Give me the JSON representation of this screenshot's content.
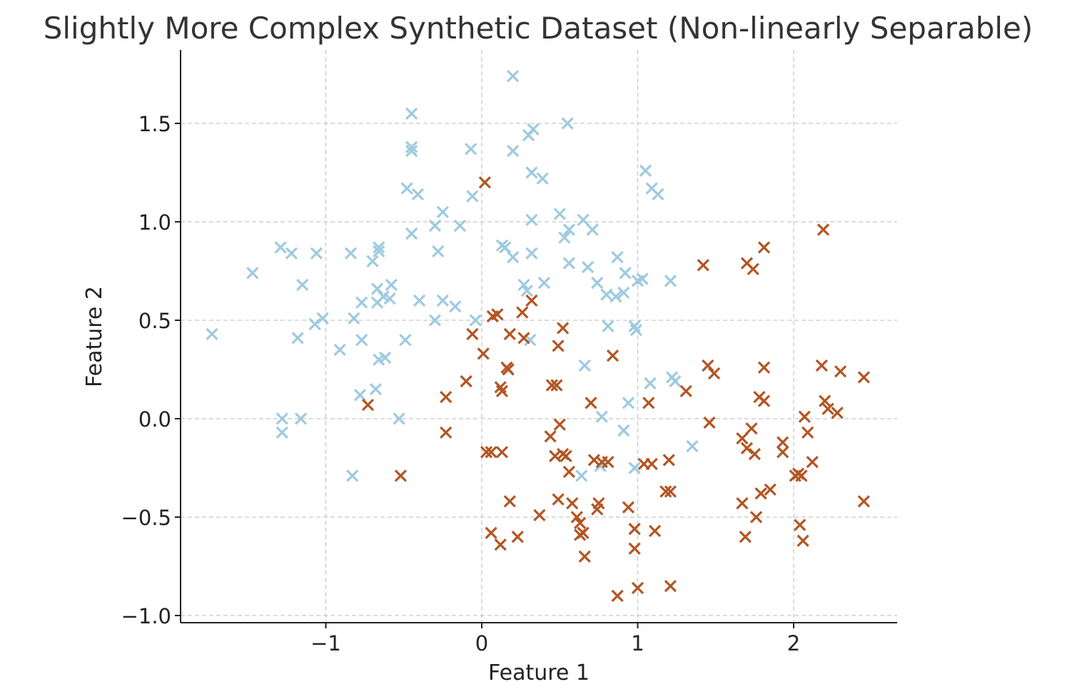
{
  "chart_data": {
    "type": "scatter",
    "title": "Slightly More Complex Synthetic Dataset (Non-linearly Separable)",
    "xlabel": "Feature 1",
    "ylabel": "Feature 2",
    "xlim": [
      -1.9,
      2.65
    ],
    "ylim": [
      -1.04,
      1.87
    ],
    "xticks": [
      -1,
      0,
      1,
      2
    ],
    "yticks": [
      -1.0,
      -0.5,
      0.0,
      0.5,
      1.0,
      1.5
    ],
    "xtick_labels": [
      "−1",
      "0",
      "1",
      "2"
    ],
    "ytick_labels": [
      "−1.0",
      "−0.5",
      "0.0",
      "0.5",
      "1.0",
      "1.5"
    ],
    "grid": true,
    "marker": "x",
    "series": [
      {
        "color": "#9ecae1",
        "points": [
          [
            0.2,
            1.74
          ],
          [
            -0.45,
            1.55
          ],
          [
            0.55,
            1.5
          ],
          [
            0.3,
            1.44
          ],
          [
            0.33,
            1.47
          ],
          [
            -0.45,
            1.38
          ],
          [
            -0.45,
            1.36
          ],
          [
            -0.07,
            1.37
          ],
          [
            0.2,
            1.36
          ],
          [
            0.32,
            1.25
          ],
          [
            0.39,
            1.22
          ],
          [
            1.05,
            1.26
          ],
          [
            1.09,
            1.17
          ],
          [
            1.13,
            1.14
          ],
          [
            -0.48,
            1.17
          ],
          [
            -0.41,
            1.14
          ],
          [
            -0.06,
            1.13
          ],
          [
            -0.25,
            1.05
          ],
          [
            -0.14,
            0.98
          ],
          [
            -0.3,
            0.98
          ],
          [
            0.32,
            1.01
          ],
          [
            0.5,
            1.04
          ],
          [
            0.65,
            1.01
          ],
          [
            0.56,
            0.96
          ],
          [
            0.53,
            0.92
          ],
          [
            0.71,
            0.96
          ],
          [
            -0.45,
            0.94
          ],
          [
            0.13,
            0.88
          ],
          [
            0.15,
            0.87
          ],
          [
            -1.29,
            0.87
          ],
          [
            -1.22,
            0.84
          ],
          [
            -1.06,
            0.84
          ],
          [
            -0.84,
            0.84
          ],
          [
            -0.66,
            0.87
          ],
          [
            -0.66,
            0.85
          ],
          [
            -0.28,
            0.85
          ],
          [
            0.32,
            0.84
          ],
          [
            0.2,
            0.82
          ],
          [
            0.87,
            0.82
          ],
          [
            -0.7,
            0.8
          ],
          [
            0.56,
            0.79
          ],
          [
            0.68,
            0.77
          ],
          [
            -1.47,
            0.74
          ],
          [
            0.92,
            0.74
          ],
          [
            0.27,
            0.68
          ],
          [
            0.4,
            0.69
          ],
          [
            0.74,
            0.69
          ],
          [
            1.0,
            0.7
          ],
          [
            1.03,
            0.71
          ],
          [
            1.21,
            0.7
          ],
          [
            -1.15,
            0.68
          ],
          [
            -0.58,
            0.68
          ],
          [
            -0.67,
            0.66
          ],
          [
            0.29,
            0.65
          ],
          [
            0.8,
            0.63
          ],
          [
            0.86,
            0.62
          ],
          [
            0.91,
            0.64
          ],
          [
            -0.63,
            0.62
          ],
          [
            -0.59,
            0.61
          ],
          [
            -0.4,
            0.6
          ],
          [
            -0.25,
            0.6
          ],
          [
            -0.77,
            0.59
          ],
          [
            -0.67,
            0.59
          ],
          [
            -0.17,
            0.57
          ],
          [
            -1.02,
            0.51
          ],
          [
            -1.07,
            0.48
          ],
          [
            -0.82,
            0.51
          ],
          [
            -0.3,
            0.5
          ],
          [
            -0.04,
            0.5
          ],
          [
            0.98,
            0.47
          ],
          [
            0.99,
            0.45
          ],
          [
            0.81,
            0.47
          ],
          [
            -1.73,
            0.43
          ],
          [
            -1.18,
            0.41
          ],
          [
            -0.77,
            0.4
          ],
          [
            -0.49,
            0.4
          ],
          [
            0.31,
            0.4
          ],
          [
            -0.91,
            0.35
          ],
          [
            -0.66,
            0.3
          ],
          [
            -0.62,
            0.31
          ],
          [
            0.66,
            0.27
          ],
          [
            1.08,
            0.18
          ],
          [
            1.22,
            0.21
          ],
          [
            1.24,
            0.19
          ],
          [
            -0.68,
            0.15
          ],
          [
            -0.78,
            0.12
          ],
          [
            0.94,
            0.08
          ],
          [
            0.77,
            0.01
          ],
          [
            -1.28,
            0.0
          ],
          [
            -1.16,
            0.0
          ],
          [
            -0.53,
            0.0
          ],
          [
            -1.28,
            -0.07
          ],
          [
            0.91,
            -0.06
          ],
          [
            1.35,
            -0.14
          ],
          [
            0.76,
            -0.24
          ],
          [
            0.64,
            -0.29
          ],
          [
            0.98,
            -0.25
          ],
          [
            -0.83,
            -0.29
          ]
        ]
      },
      {
        "color": "#b35523",
        "points": [
          [
            0.02,
            1.2
          ],
          [
            2.19,
            0.96
          ],
          [
            1.81,
            0.87
          ],
          [
            1.42,
            0.78
          ],
          [
            1.7,
            0.79
          ],
          [
            1.74,
            0.76
          ],
          [
            0.32,
            0.6
          ],
          [
            0.07,
            0.52
          ],
          [
            0.1,
            0.53
          ],
          [
            0.26,
            0.54
          ],
          [
            -0.06,
            0.43
          ],
          [
            0.18,
            0.43
          ],
          [
            0.27,
            0.41
          ],
          [
            0.52,
            0.46
          ],
          [
            0.49,
            0.37
          ],
          [
            0.01,
            0.33
          ],
          [
            0.84,
            0.32
          ],
          [
            0.16,
            0.26
          ],
          [
            0.17,
            0.25
          ],
          [
            1.45,
            0.27
          ],
          [
            1.49,
            0.23
          ],
          [
            1.81,
            0.26
          ],
          [
            2.18,
            0.27
          ],
          [
            2.3,
            0.24
          ],
          [
            2.45,
            0.21
          ],
          [
            -0.1,
            0.19
          ],
          [
            0.45,
            0.17
          ],
          [
            0.48,
            0.17
          ],
          [
            0.12,
            0.16
          ],
          [
            0.13,
            0.14
          ],
          [
            1.31,
            0.14
          ],
          [
            -0.23,
            0.11
          ],
          [
            1.78,
            0.11
          ],
          [
            1.81,
            0.09
          ],
          [
            2.2,
            0.09
          ],
          [
            2.22,
            0.05
          ],
          [
            2.28,
            0.03
          ],
          [
            -0.73,
            0.07
          ],
          [
            0.7,
            0.08
          ],
          [
            1.07,
            0.08
          ],
          [
            2.07,
            0.01
          ],
          [
            0.5,
            -0.03
          ],
          [
            1.46,
            -0.02
          ],
          [
            1.73,
            -0.05
          ],
          [
            -0.23,
            -0.07
          ],
          [
            2.09,
            -0.07
          ],
          [
            0.44,
            -0.09
          ],
          [
            1.67,
            -0.1
          ],
          [
            1.93,
            -0.12
          ],
          [
            1.7,
            -0.15
          ],
          [
            1.75,
            -0.18
          ],
          [
            1.93,
            -0.17
          ],
          [
            0.03,
            -0.17
          ],
          [
            0.06,
            -0.17
          ],
          [
            0.13,
            -0.17
          ],
          [
            0.47,
            -0.19
          ],
          [
            0.52,
            -0.18
          ],
          [
            0.54,
            -0.19
          ],
          [
            0.72,
            -0.21
          ],
          [
            0.77,
            -0.22
          ],
          [
            0.81,
            -0.22
          ],
          [
            1.04,
            -0.23
          ],
          [
            1.09,
            -0.23
          ],
          [
            1.2,
            -0.21
          ],
          [
            2.12,
            -0.22
          ],
          [
            0.56,
            -0.27
          ],
          [
            -0.52,
            -0.29
          ],
          [
            2.01,
            -0.29
          ],
          [
            2.03,
            -0.28
          ],
          [
            2.05,
            -0.29
          ],
          [
            1.18,
            -0.37
          ],
          [
            1.21,
            -0.37
          ],
          [
            1.79,
            -0.38
          ],
          [
            1.85,
            -0.36
          ],
          [
            0.18,
            -0.42
          ],
          [
            0.49,
            -0.41
          ],
          [
            0.58,
            -0.43
          ],
          [
            0.75,
            -0.43
          ],
          [
            0.74,
            -0.46
          ],
          [
            0.94,
            -0.45
          ],
          [
            1.67,
            -0.43
          ],
          [
            2.45,
            -0.42
          ],
          [
            0.37,
            -0.49
          ],
          [
            0.61,
            -0.5
          ],
          [
            0.63,
            -0.53
          ],
          [
            1.76,
            -0.5
          ],
          [
            2.04,
            -0.54
          ],
          [
            0.06,
            -0.58
          ],
          [
            0.23,
            -0.6
          ],
          [
            0.63,
            -0.59
          ],
          [
            0.65,
            -0.58
          ],
          [
            0.98,
            -0.56
          ],
          [
            1.11,
            -0.57
          ],
          [
            1.69,
            -0.6
          ],
          [
            2.06,
            -0.62
          ],
          [
            0.12,
            -0.64
          ],
          [
            0.98,
            -0.66
          ],
          [
            0.66,
            -0.7
          ],
          [
            1.0,
            -0.86
          ],
          [
            1.21,
            -0.85
          ],
          [
            0.87,
            -0.9
          ]
        ]
      }
    ]
  }
}
